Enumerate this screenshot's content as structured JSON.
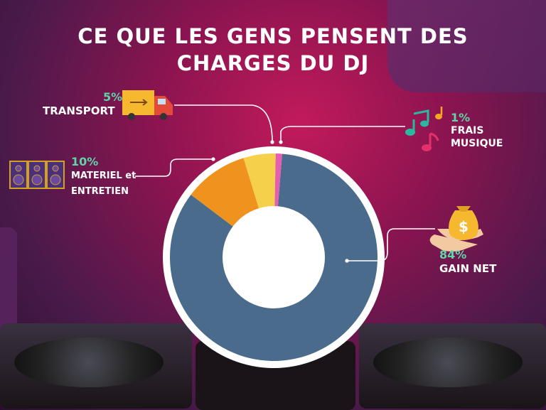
{
  "title_line1": "CE QUE LES GENS PENSENT DES",
  "title_line2": "CHARGES DU DJ",
  "colors": {
    "gain": "#4a6b8c",
    "materiel": "#f0921e",
    "transport": "#f5d04a",
    "musique": "#e55fb0",
    "pct": "#5fd4a8"
  },
  "icons": [
    "truck-icon",
    "music-notes-icon",
    "speakers-icon",
    "money-bag-icon"
  ],
  "chart_data": {
    "type": "pie",
    "title": "CE QUE LES GENS PENSENT DES CHARGES DU DJ",
    "slices": [
      {
        "label": "GAIN NET",
        "value": 84,
        "pct_text": "84%"
      },
      {
        "label": "MATERIEL et ENTRETIEN",
        "value": 10,
        "pct_text": "10%"
      },
      {
        "label": "TRANSPORT",
        "value": 5,
        "pct_text": "5%"
      },
      {
        "label": "FRAIS MUSIQUE",
        "value": 1,
        "pct_text": "1%"
      }
    ]
  },
  "labels": {
    "transport_pct": "5%",
    "transport": "TRANSPORT",
    "musique_pct": "1%",
    "musique_l1": "FRAIS",
    "musique_l2": "MUSIQUE",
    "materiel_pct": "10%",
    "materiel_l1": "MATERIEL et",
    "materiel_l2": "ENTRETIEN",
    "gain_pct": "84%",
    "gain": "GAIN NET"
  }
}
